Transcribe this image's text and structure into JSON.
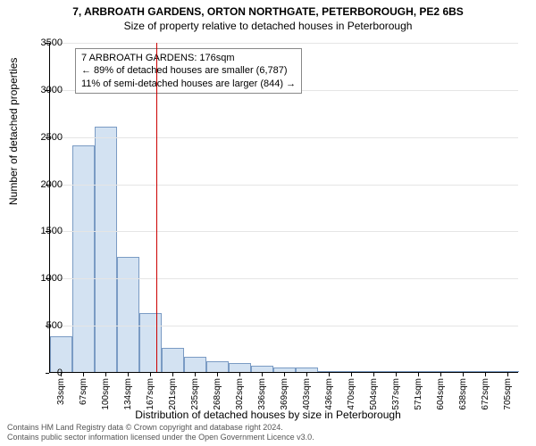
{
  "title": "7, ARBROATH GARDENS, ORTON NORTHGATE, PETERBOROUGH, PE2 6BS",
  "subtitle": "Size of property relative to detached houses in Peterborough",
  "y_axis_label": "Number of detached properties",
  "x_axis_label": "Distribution of detached houses by size in Peterborough",
  "chart": {
    "type": "histogram",
    "ylim": [
      0,
      3500
    ],
    "ytick_step": 500,
    "yticks": [
      0,
      500,
      1000,
      1500,
      2000,
      2500,
      3000,
      3500
    ],
    "x_categories": [
      "33sqm",
      "67sqm",
      "100sqm",
      "134sqm",
      "167sqm",
      "201sqm",
      "235sqm",
      "268sqm",
      "302sqm",
      "336sqm",
      "369sqm",
      "403sqm",
      "436sqm",
      "470sqm",
      "504sqm",
      "537sqm",
      "571sqm",
      "604sqm",
      "638sqm",
      "672sqm",
      "705sqm"
    ],
    "bar_values": [
      380,
      2400,
      2600,
      1220,
      620,
      260,
      160,
      115,
      95,
      65,
      50,
      45,
      5,
      8,
      4,
      6,
      4,
      5,
      3,
      4,
      3
    ],
    "bar_fill": "#d3e2f2",
    "bar_stroke": "#7a9bc4",
    "grid_color": "#e5e5e5",
    "reference_line": {
      "value_sqm": 176,
      "color": "#cc0000"
    },
    "annotation": {
      "lines": [
        "7 ARBROATH GARDENS: 176sqm",
        "← 89% of detached houses are smaller (6,787)",
        "11% of semi-detached houses are larger (844) →"
      ]
    }
  },
  "footer": {
    "line1": "Contains HM Land Registry data © Crown copyright and database right 2024.",
    "line2": "Contains public sector information licensed under the Open Government Licence v3.0."
  }
}
